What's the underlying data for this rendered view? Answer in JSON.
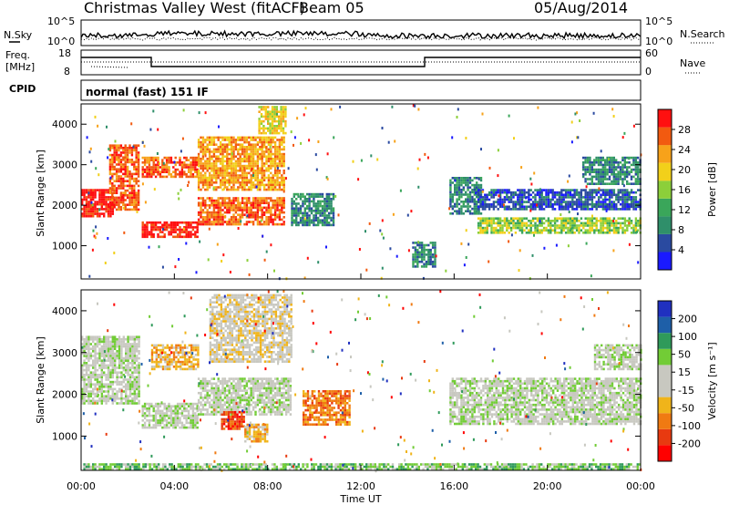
{
  "header": {
    "station": "Christmas Valley West (fitACF)",
    "beam": "Beam 05",
    "date": "05/Aug/2014"
  },
  "left_labels": {
    "nsky": "N.Sky",
    "freq": "Freq.",
    "freq_unit": "[MHz]",
    "cpid": "CPID"
  },
  "right_labels": {
    "nsearch": "N.Search",
    "nave": "Nave"
  },
  "cpid_text": "normal (fast) 151 IF",
  "noise_panel": {
    "left_ticks": [
      "10^5",
      "10^0"
    ],
    "right_ticks": [
      "10^5",
      "10^0"
    ]
  },
  "freq_panel": {
    "left_ticks": [
      "18",
      "8"
    ],
    "right_ticks": [
      "60",
      "0"
    ]
  },
  "colors": {
    "power": [
      "#1a1aff",
      "#2a4aa0",
      "#2f8f6a",
      "#3aa65a",
      "#8ccf3a",
      "#f2d01a",
      "#f7a21a",
      "#f25a10",
      "#ff1010"
    ],
    "velocity": [
      "#2030c0",
      "#1e5fa8",
      "#2f9a5a",
      "#72cc36",
      "#c8c8c0",
      "#c8c8c0",
      "#f0b41a",
      "#f07a12",
      "#e83a10",
      "#ff0000"
    ]
  },
  "chart_data": [
    {
      "type": "heatmap",
      "name": "power",
      "ylabel": "Slant Range [km]",
      "colorbar_label": "Power [dB]",
      "colorbar_ticks": [
        "28",
        "24",
        "20",
        "16",
        "12",
        "8",
        "4"
      ],
      "y_ticks": [
        "4000",
        "3000",
        "2000",
        "1000"
      ],
      "ylim": [
        180,
        4500
      ],
      "xlim": [
        0,
        24
      ],
      "grid": false,
      "regions": [
        {
          "x0": 0.0,
          "x1": 1.4,
          "y0": 1700,
          "y1": 2400,
          "level": 8
        },
        {
          "x0": 1.2,
          "x1": 2.5,
          "y0": 1900,
          "y1": 3500,
          "level": 7
        },
        {
          "x0": 2.6,
          "x1": 5.0,
          "y0": 2700,
          "y1": 3200,
          "level": 7
        },
        {
          "x0": 2.6,
          "x1": 5.0,
          "y0": 1200,
          "y1": 1600,
          "level": 8
        },
        {
          "x0": 5.0,
          "x1": 8.7,
          "y0": 2400,
          "y1": 3700,
          "level": 6
        },
        {
          "x0": 5.0,
          "x1": 8.7,
          "y0": 1500,
          "y1": 2200,
          "level": 7
        },
        {
          "x0": 7.6,
          "x1": 8.8,
          "y0": 3800,
          "y1": 4450,
          "level": 5
        },
        {
          "x0": 9.0,
          "x1": 10.8,
          "y0": 1500,
          "y1": 2300,
          "level": 2
        },
        {
          "x0": 14.2,
          "x1": 15.2,
          "y0": 500,
          "y1": 1100,
          "level": 2
        },
        {
          "x0": 15.8,
          "x1": 17.2,
          "y0": 1800,
          "y1": 2700,
          "level": 2
        },
        {
          "x0": 17.0,
          "x1": 24.0,
          "y0": 1300,
          "y1": 1700,
          "level": 4
        },
        {
          "x0": 17.0,
          "x1": 24.0,
          "y0": 1900,
          "y1": 2400,
          "level": 1
        },
        {
          "x0": 21.5,
          "x1": 24.0,
          "y0": 2500,
          "y1": 3200,
          "level": 2
        }
      ]
    },
    {
      "type": "heatmap",
      "name": "velocity",
      "ylabel": "Slant Range [km]",
      "colorbar_label": "Velocity [m s⁻¹]",
      "colorbar_ticks": [
        "200",
        "100",
        "50",
        "15",
        "-15",
        "-50",
        "-100",
        "-200"
      ],
      "y_ticks": [
        "4000",
        "3000",
        "2000",
        "1000"
      ],
      "ylim": [
        180,
        4500
      ],
      "xlim": [
        0,
        24
      ],
      "x_ticks": [
        "00:00",
        "04:00",
        "08:00",
        "12:00",
        "16:00",
        "20:00",
        "00:00"
      ],
      "xlabel": "Time UT",
      "grid": false,
      "regions": [
        {
          "x0": 0.0,
          "x1": 2.5,
          "y0": 1800,
          "y1": 3400,
          "level": 4
        },
        {
          "x0": 2.6,
          "x1": 5.0,
          "y0": 1200,
          "y1": 1800,
          "level": 4
        },
        {
          "x0": 3.0,
          "x1": 5.0,
          "y0": 2600,
          "y1": 3200,
          "level": 6
        },
        {
          "x0": 5.0,
          "x1": 9.0,
          "y0": 1500,
          "y1": 2400,
          "level": 4
        },
        {
          "x0": 5.5,
          "x1": 9.0,
          "y0": 2800,
          "y1": 4400,
          "level": 5
        },
        {
          "x0": 6.0,
          "x1": 7.0,
          "y0": 1200,
          "y1": 1600,
          "level": 8
        },
        {
          "x0": 7.0,
          "x1": 8.0,
          "y0": 900,
          "y1": 1300,
          "level": 6
        },
        {
          "x0": 9.5,
          "x1": 11.5,
          "y0": 1300,
          "y1": 2100,
          "level": 7
        },
        {
          "x0": 15.8,
          "x1": 24.0,
          "y0": 1300,
          "y1": 2400,
          "level": 4
        },
        {
          "x0": 22.0,
          "x1": 24.0,
          "y0": 2600,
          "y1": 3200,
          "level": 4
        },
        {
          "x0": 0.0,
          "x1": 24.0,
          "y0": 180,
          "y1": 350,
          "level": 3
        }
      ]
    }
  ]
}
